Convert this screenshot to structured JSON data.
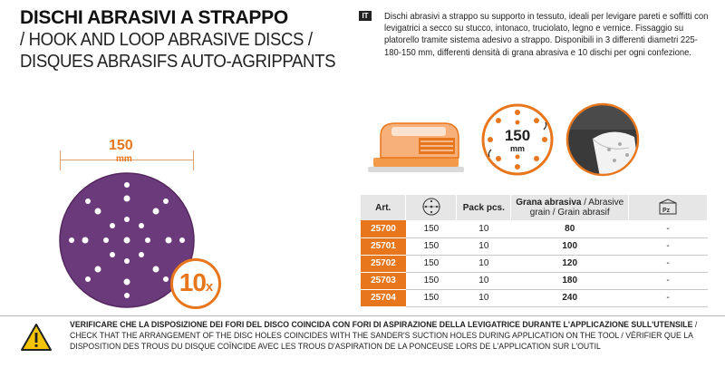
{
  "title": {
    "main": "DISCHI ABRASIVI A STRAPPO",
    "sub_en": "/ HOOK AND LOOP ABRASIVE DISCS /",
    "sub_fr": "DISQUES ABRASIFS AUTO-AGRIPPANTS"
  },
  "language_badge": "IT",
  "description": "Dischi abrasivi a strappo su supporto in tessuto, ideali per levigare pareti e soffitti con levigatrici a secco su stucco, intonaco, truciolato, legno e vernice. Fissaggio su platorello tramite sistema adesivo a strappo. Disponibili in 3 differenti diametri 225-180-150 mm, differenti densità di grana abrasiva e 10 dischi per ogni confezione.",
  "disc": {
    "diameter": "150",
    "unit": "mm",
    "quantity": "10",
    "quantity_suffix": "x",
    "color": "#6b3a7a"
  },
  "badge_diameter": {
    "value": "150",
    "unit": "mm"
  },
  "table": {
    "headers": {
      "art": "Art.",
      "pack": "Pack pcs.",
      "grain_it": "Grana abrasiva",
      "grain_en_fr": " / Abrasive grain / Grain abrasif"
    },
    "rows": [
      {
        "art": "25700",
        "diameter": "150",
        "pack": "10",
        "grain": "80",
        "extra": "-"
      },
      {
        "art": "25701",
        "diameter": "150",
        "pack": "10",
        "grain": "100",
        "extra": "-"
      },
      {
        "art": "25702",
        "diameter": "150",
        "pack": "10",
        "grain": "120",
        "extra": "-"
      },
      {
        "art": "25703",
        "diameter": "150",
        "pack": "10",
        "grain": "180",
        "extra": "-"
      },
      {
        "art": "25704",
        "diameter": "150",
        "pack": "10",
        "grain": "240",
        "extra": "-"
      }
    ],
    "pz_label": "Pz"
  },
  "footer": {
    "bold": "VERIFICARE CHE LA DISPOSIZIONE DEI FORI DEL DISCO COINCIDA CON FORI DI ASPIRAZIONE DELLA LEVIGATRICE DURANTE L'APPLICAZIONE SULL'UTENSILE",
    "rest": " / CHECK THAT THE ARRANGEMENT OF THE DISC HOLES COINCIDES WITH THE SANDER'S SUCTION HOLES DURING APPLICATION ON THE TOOL / VÉRIFIER QUE LA DISPOSITION DES TROUS DU DISQUE COÏNCIDE AVEC LES TROUS D'ASPIRATION DE LA PONCEUSE LORS DE L'APPLICATION SUR L'OUTIL"
  },
  "colors": {
    "accent": "#e8761c",
    "header_bg": "#e6e6e6",
    "disc": "#6b3a7a",
    "warning": "#f5c400"
  }
}
